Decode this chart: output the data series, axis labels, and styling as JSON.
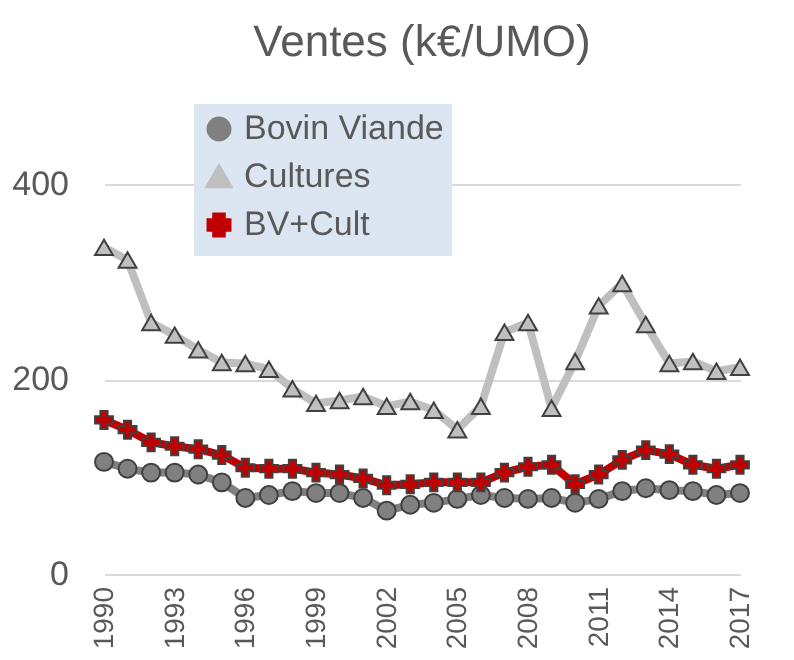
{
  "chart_data": {
    "type": "line",
    "title": "Ventes (k€/UMO)",
    "x": [
      1990,
      1991,
      1992,
      1993,
      1994,
      1995,
      1996,
      1997,
      1998,
      1999,
      2000,
      2001,
      2002,
      2003,
      2004,
      2005,
      2006,
      2007,
      2008,
      2009,
      2010,
      2011,
      2012,
      2013,
      2014,
      2015,
      2016,
      2017
    ],
    "series": [
      {
        "name": "Bovin Viande",
        "color": "#808080",
        "marker": "circle",
        "values": [
          115,
          108,
          104,
          104,
          102,
          94,
          78,
          81,
          85,
          83,
          83,
          78,
          65,
          71,
          73,
          77,
          81,
          78,
          77,
          78,
          73,
          77,
          85,
          88,
          86,
          85,
          81,
          83
        ]
      },
      {
        "name": "Cultures",
        "color": "#bfbfbf",
        "marker": "triangle",
        "values": [
          335,
          322,
          258,
          245,
          230,
          217,
          216,
          210,
          190,
          175,
          178,
          182,
          172,
          177,
          168,
          148,
          172,
          248,
          258,
          170,
          218,
          275,
          298,
          256,
          216,
          218,
          208,
          212
        ]
      },
      {
        "name": "BV+Cult",
        "color": "#c00000",
        "marker": "cross",
        "values": [
          158,
          148,
          135,
          131,
          128,
          122,
          109,
          108,
          108,
          104,
          102,
          98,
          91,
          92,
          94,
          94,
          94,
          104,
          110,
          112,
          92,
          102,
          117,
          127,
          123,
          112,
          108,
          112
        ]
      }
    ],
    "xlim": [
      1990,
      2017
    ],
    "xticks": [
      1990,
      1993,
      1996,
      1999,
      2002,
      2005,
      2008,
      2011,
      2014,
      2017
    ],
    "ylim": [
      0,
      400
    ],
    "yticks": [
      0,
      200,
      400
    ],
    "grid": "y",
    "legend": "top",
    "line_style": "solid"
  }
}
